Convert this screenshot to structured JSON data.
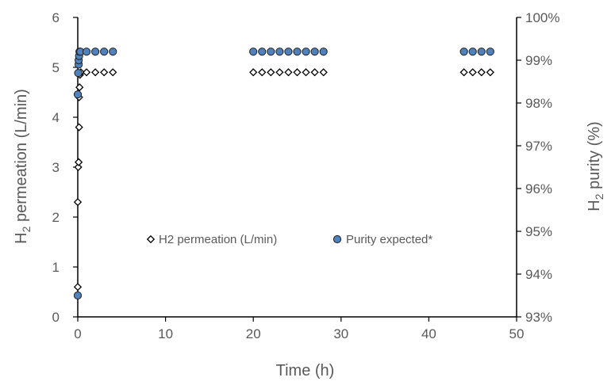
{
  "chart_data": {
    "type": "scatter",
    "title": "",
    "xlabel": "Time (h)",
    "ylabel_left": {
      "main": "H",
      "sub": "2",
      "rest": " permeation (L/min)"
    },
    "ylabel_right": {
      "main": "H",
      "sub": "2",
      "rest": " purity (%)"
    },
    "xlim": [
      0,
      50
    ],
    "ylim_left": [
      0,
      6
    ],
    "ylim_right": [
      93,
      100
    ],
    "x_ticks": [
      0,
      10,
      20,
      30,
      40,
      50
    ],
    "x_tick_labels": [
      "0",
      "10",
      "20",
      "30",
      "40",
      "50"
    ],
    "y_left_ticks": [
      0,
      1,
      2,
      3,
      4,
      5,
      6
    ],
    "y_left_tick_labels": [
      "0",
      "1",
      "2",
      "3",
      "4",
      "5",
      "6"
    ],
    "y_right_ticks": [
      93,
      94,
      95,
      96,
      97,
      98,
      99,
      100
    ],
    "y_right_tick_labels": [
      "93%",
      "94%",
      "95%",
      "96%",
      "97%",
      "98%",
      "99%",
      "100%"
    ],
    "grid": false,
    "legend_position": "center",
    "series": [
      {
        "name": "H2 permeation (L/min)",
        "axis": "left",
        "marker": "diamond-open",
        "color": "#000000",
        "points": [
          [
            0.0,
            0.6
          ],
          [
            0.0,
            2.3
          ],
          [
            0.05,
            3.0
          ],
          [
            0.1,
            3.1
          ],
          [
            0.15,
            3.8
          ],
          [
            0.15,
            4.4
          ],
          [
            0.2,
            4.6
          ],
          [
            0.25,
            4.85
          ],
          [
            0.35,
            4.9
          ],
          [
            1.0,
            4.9
          ],
          [
            2.0,
            4.9
          ],
          [
            3.0,
            4.9
          ],
          [
            4.0,
            4.9
          ],
          [
            20.0,
            4.9
          ],
          [
            21.0,
            4.9
          ],
          [
            22.0,
            4.9
          ],
          [
            23.0,
            4.9
          ],
          [
            24.0,
            4.9
          ],
          [
            25.0,
            4.9
          ],
          [
            26.0,
            4.9
          ],
          [
            27.0,
            4.9
          ],
          [
            28.0,
            4.9
          ],
          [
            44.0,
            4.9
          ],
          [
            45.0,
            4.9
          ],
          [
            46.0,
            4.9
          ],
          [
            47.0,
            4.9
          ]
        ]
      },
      {
        "name": "Purity expected*",
        "axis": "right",
        "marker": "circle",
        "color": "#4f81bd",
        "points": [
          [
            0.0,
            93.5
          ],
          [
            0.0,
            98.2
          ],
          [
            0.05,
            98.7
          ],
          [
            0.1,
            98.9
          ],
          [
            0.1,
            99.0
          ],
          [
            0.15,
            99.1
          ],
          [
            0.2,
            99.2
          ],
          [
            0.3,
            99.2
          ],
          [
            1.0,
            99.2
          ],
          [
            2.0,
            99.2
          ],
          [
            3.0,
            99.2
          ],
          [
            4.0,
            99.2
          ],
          [
            20.0,
            99.2
          ],
          [
            21.0,
            99.2
          ],
          [
            22.0,
            99.2
          ],
          [
            23.0,
            99.2
          ],
          [
            24.0,
            99.2
          ],
          [
            25.0,
            99.2
          ],
          [
            26.0,
            99.2
          ],
          [
            27.0,
            99.2
          ],
          [
            28.0,
            99.2
          ],
          [
            44.0,
            99.2
          ],
          [
            45.0,
            99.2
          ],
          [
            46.0,
            99.2
          ],
          [
            47.0,
            99.2
          ]
        ]
      }
    ]
  }
}
